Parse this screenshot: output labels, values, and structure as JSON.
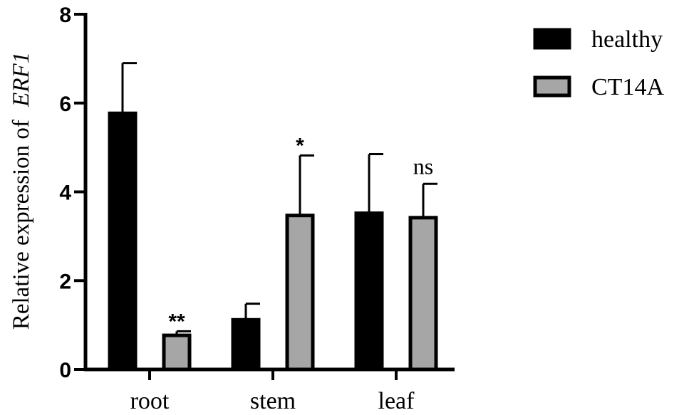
{
  "chart_data": {
    "type": "bar",
    "title": "",
    "xlabel": "",
    "ylabel": "Relative  expression of",
    "ylabel_gene": "ERF1",
    "categories": [
      "root",
      "stem",
      "leaf"
    ],
    "ylim": [
      0,
      8
    ],
    "yticks": [
      "0",
      "2",
      "4",
      "6",
      "8"
    ],
    "series": [
      {
        "name": "healthy",
        "color": "#000000",
        "values": [
          5.8,
          1.15,
          3.55
        ],
        "errors": [
          1.1,
          0.33,
          1.3
        ]
      },
      {
        "name": "CT14A",
        "color": "#a6a6a6",
        "values": [
          0.8,
          3.5,
          3.45
        ],
        "errors": [
          0.06,
          1.32,
          0.73
        ]
      }
    ],
    "significance": [
      "**",
      "*",
      "ns"
    ],
    "grid": false,
    "legend_position": "top-right"
  }
}
